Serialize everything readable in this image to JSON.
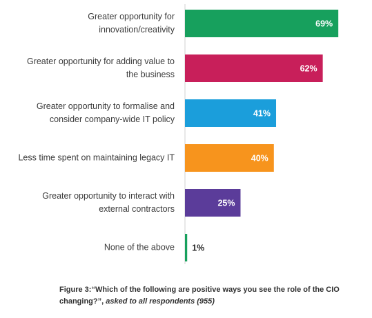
{
  "chart_data": {
    "type": "bar",
    "orientation": "horizontal",
    "categories": [
      [
        "Greater opportunity for",
        "innovation/creativity"
      ],
      [
        "Greater opportunity for adding value to",
        "the business"
      ],
      [
        "Greater opportunity to formalise and",
        "consider company-wide IT policy"
      ],
      [
        "Less time spent on maintaining legacy IT"
      ],
      [
        "Greater opportunity to interact with",
        "external contractors"
      ],
      [
        "None of the above"
      ]
    ],
    "values": [
      69,
      62,
      41,
      40,
      25,
      1
    ],
    "value_labels": [
      "69%",
      "62%",
      "41%",
      "40%",
      "25%",
      "1%"
    ],
    "colors": [
      "#17a05d",
      "#c81f5a",
      "#1b9edb",
      "#f7941d",
      "#5b3c9a",
      "#17a05d"
    ],
    "grid": false,
    "legend": "none"
  },
  "caption": {
    "main": "Figure 3:“Which of the following are positive ways you see the role of the CIO changing?”,",
    "italic": "asked to all respondents (955)"
  }
}
